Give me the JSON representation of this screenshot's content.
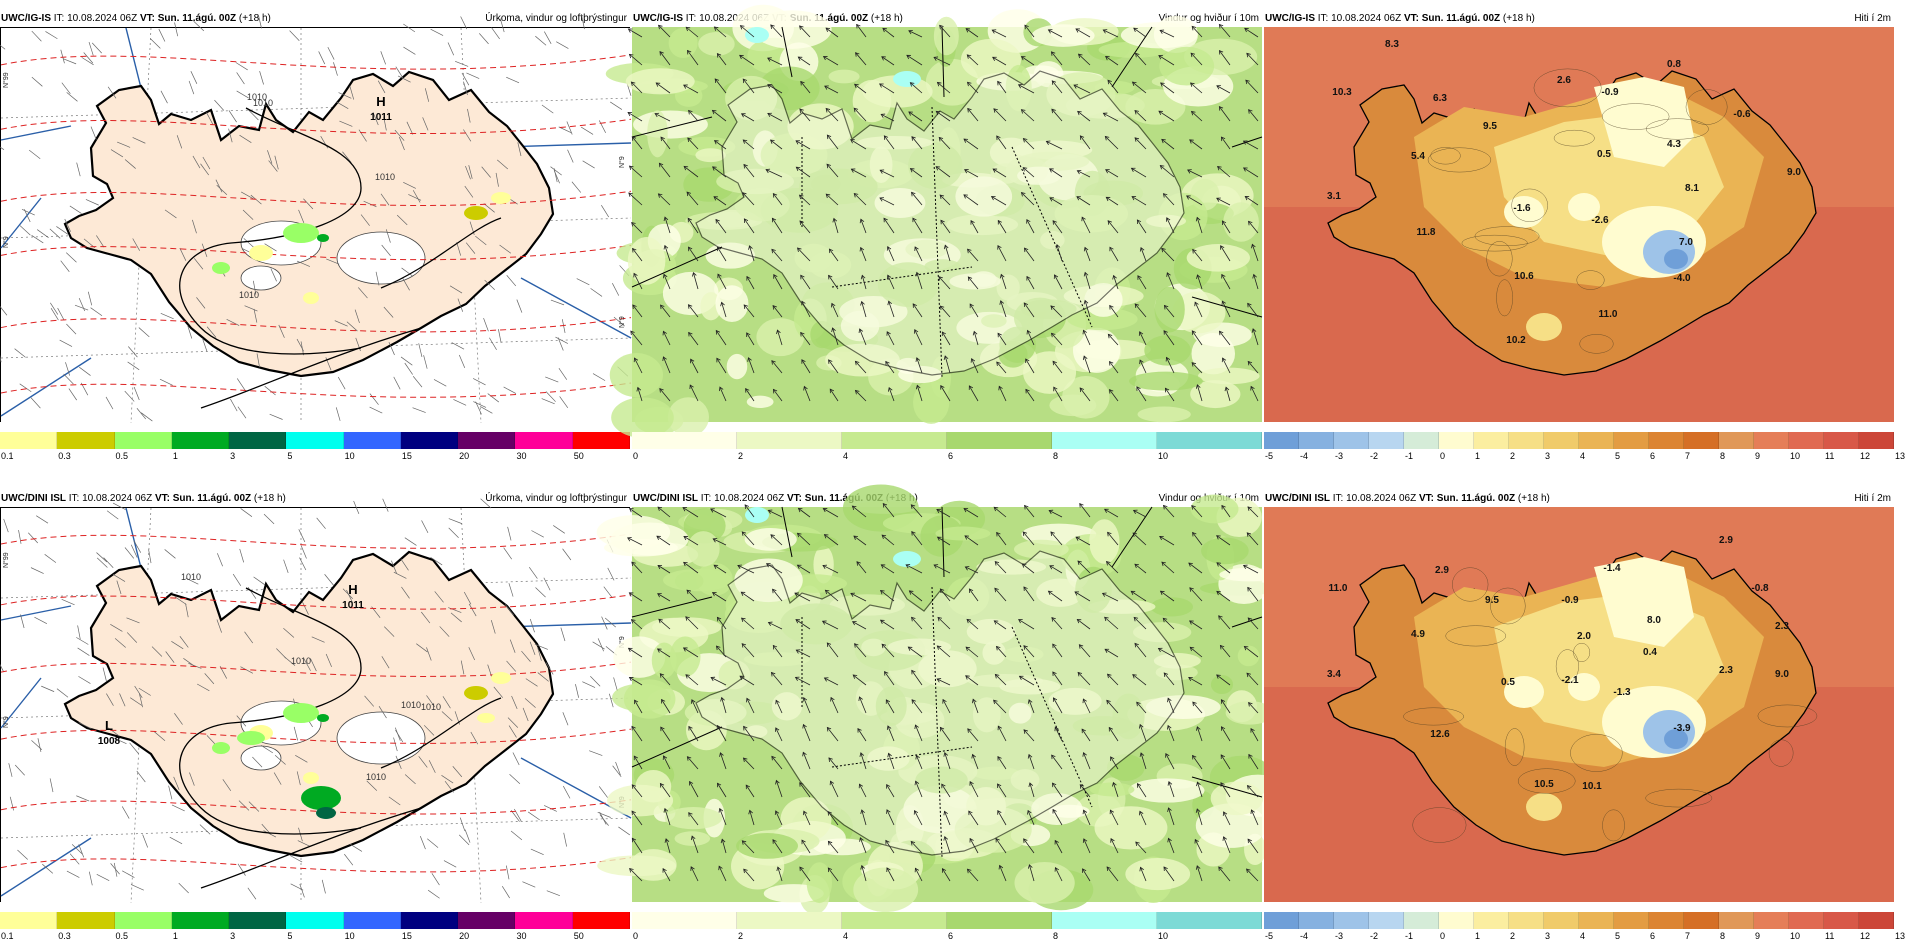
{
  "panels": [
    {
      "id": "p1",
      "model": "UWC/IG-IS",
      "it_label": "IT:",
      "it_value": "10.08.2024 06Z",
      "vt_label": "VT:",
      "vt_value": "Sun. 11.ágú. 00Z",
      "lead": "(+18 h)",
      "field_title": "Úrkoma, vindur og loftþrýstingur",
      "type": "precip",
      "side_labels": [
        "N°99",
        "N°9",
        "N°9",
        "N°9"
      ],
      "pressure_labels": [
        {
          "kind": "H",
          "value": "1011"
        }
      ],
      "isobar_labels": [
        "1010",
        "1010",
        "1010",
        "1010"
      ],
      "colorbar": {
        "colors": [
          "#ffff99",
          "#cccc00",
          "#99ff66",
          "#00aa22",
          "#006644",
          "#00ffee",
          "#3366ff",
          "#000080",
          "#660066",
          "#ff0099",
          "#ff0000"
        ],
        "ticks": [
          "0.1",
          "0.3",
          "0.5",
          "1",
          "3",
          "5",
          "10",
          "15",
          "20",
          "30",
          "50"
        ]
      }
    },
    {
      "id": "p2",
      "model": "UWC/IG-IS",
      "it_label": "IT:",
      "it_value": "10.08.2024 06Z",
      "vt_label": "VT:",
      "vt_value": "Sun. 11.ágú. 00Z",
      "lead": "(+18 h)",
      "field_title": "Vindur og hviður í 10m",
      "type": "wind",
      "colorbar": {
        "colors": [
          "#ffffe8",
          "#ecf8c4",
          "#c6ea90",
          "#a8d86e",
          "#aafff4",
          "#7ddad6"
        ],
        "ticks": [
          "0",
          "2",
          "4",
          "6",
          "8",
          "10"
        ]
      }
    },
    {
      "id": "p3",
      "model": "UWC/IG-IS",
      "it_label": "IT:",
      "it_value": "10.08.2024 06Z",
      "vt_label": "VT:",
      "vt_value": "Sun. 11.ágú. 00Z",
      "lead": "(+18 h)",
      "field_title": "Hiti í 2m",
      "type": "temp",
      "temp_labels": [
        "8.3",
        "10.3",
        "6.3",
        "5.4",
        "3.1",
        "9.5",
        "2.6",
        "-0.9",
        "0.8",
        "-0.6",
        "0.5",
        "4.3",
        "9.0",
        "8.1",
        "-1.6",
        "-2.6",
        "11.8",
        "7.0",
        "10.6",
        "-4.0",
        "11.0",
        "10.2"
      ],
      "colorbar": {
        "colors": [
          "#6f9fd8",
          "#86b1e0",
          "#9ec3e8",
          "#b8d6f0",
          "#d5ecd8",
          "#fffcd0",
          "#fbeea0",
          "#f6df86",
          "#f0cb6a",
          "#eab454",
          "#e39c42",
          "#dc8432",
          "#d56f26",
          "#e09858",
          "#e57e58",
          "#e06a52",
          "#d85848",
          "#cc4638"
        ],
        "ticks": [
          "-5",
          "-4",
          "-3",
          "-2",
          "-1",
          "0",
          "1",
          "2",
          "3",
          "4",
          "5",
          "6",
          "7",
          "8",
          "9",
          "10",
          "11",
          "12",
          "13"
        ]
      }
    },
    {
      "id": "p4",
      "model": "UWC/DINI ISL",
      "it_label": "IT:",
      "it_value": "10.08.2024 06Z",
      "vt_label": "VT:",
      "vt_value": "Sun. 11.ágú. 00Z",
      "lead": "(+18 h)",
      "field_title": "Úrkoma, vindur og loftþrýstingur",
      "type": "precip",
      "side_labels": [
        "N°99",
        "N°9",
        "N°9",
        "N°9"
      ],
      "pressure_labels": [
        {
          "kind": "H",
          "value": "1011"
        },
        {
          "kind": "L",
          "value": "1008"
        }
      ],
      "isobar_labels": [
        "1010",
        "1010",
        "1010",
        "1010",
        "1010"
      ],
      "colorbar": {
        "colors": [
          "#ffff99",
          "#cccc00",
          "#99ff66",
          "#00aa22",
          "#006644",
          "#00ffee",
          "#3366ff",
          "#000080",
          "#660066",
          "#ff0099",
          "#ff0000"
        ],
        "ticks": [
          "0.1",
          "0.3",
          "0.5",
          "1",
          "3",
          "5",
          "10",
          "15",
          "20",
          "30",
          "50"
        ]
      }
    },
    {
      "id": "p5",
      "model": "UWC/DINI ISL",
      "it_label": "IT:",
      "it_value": "10.08.2024 06Z",
      "vt_label": "VT:",
      "vt_value": "Sun. 11.ágú. 00Z",
      "lead": "(+18 h)",
      "field_title": "Vindur og hviður í 10m",
      "type": "wind",
      "colorbar": {
        "colors": [
          "#ffffe8",
          "#ecf8c4",
          "#c6ea90",
          "#a8d86e",
          "#aafff4",
          "#7ddad6"
        ],
        "ticks": [
          "0",
          "2",
          "4",
          "6",
          "8",
          "10"
        ]
      }
    },
    {
      "id": "p6",
      "model": "UWC/DINI ISL",
      "it_label": "IT:",
      "it_value": "10.08.2024 06Z",
      "vt_label": "VT:",
      "vt_value": "Sun. 11.ágú. 00Z",
      "lead": "(+18 h)",
      "field_title": "Hiti í 2m",
      "type": "temp",
      "temp_labels": [
        "11.0",
        "2.9",
        "9.5",
        "-1.4",
        "2.9",
        "-0.9",
        "-0.8",
        "4.9",
        "2.0",
        "8.0",
        "2.3",
        "0.4",
        "3.4",
        "0.5",
        "-2.1",
        "-1.3",
        "2.3",
        "9.0",
        "12.6",
        "-3.9",
        "10.5",
        "10.1"
      ],
      "colorbar": {
        "colors": [
          "#6f9fd8",
          "#86b1e0",
          "#9ec3e8",
          "#b8d6f0",
          "#d5ecd8",
          "#fffcd0",
          "#fbeea0",
          "#f6df86",
          "#f0cb6a",
          "#eab454",
          "#e39c42",
          "#dc8432",
          "#d56f26",
          "#e09858",
          "#e57e58",
          "#e06a52",
          "#d85848",
          "#cc4638"
        ],
        "ticks": [
          "-5",
          "-4",
          "-3",
          "-2",
          "-1",
          "0",
          "1",
          "2",
          "3",
          "4",
          "5",
          "6",
          "7",
          "8",
          "9",
          "10",
          "11",
          "12",
          "13"
        ]
      }
    }
  ]
}
